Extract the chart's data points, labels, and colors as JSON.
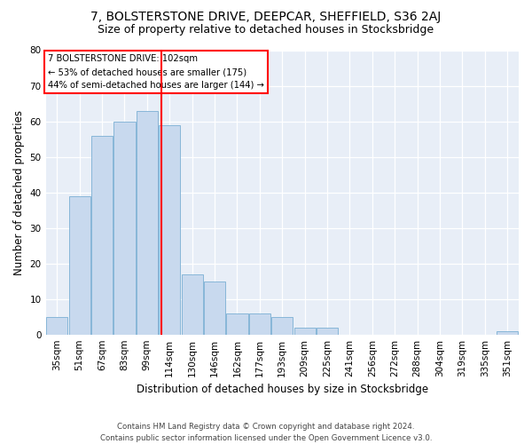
{
  "title": "7, BOLSTERSTONE DRIVE, DEEPCAR, SHEFFIELD, S36 2AJ",
  "subtitle": "Size of property relative to detached houses in Stocksbridge",
  "xlabel": "Distribution of detached houses by size in Stocksbridge",
  "ylabel": "Number of detached properties",
  "categories": [
    "35sqm",
    "51sqm",
    "67sqm",
    "83sqm",
    "99sqm",
    "114sqm",
    "130sqm",
    "146sqm",
    "162sqm",
    "177sqm",
    "193sqm",
    "209sqm",
    "225sqm",
    "241sqm",
    "256sqm",
    "272sqm",
    "288sqm",
    "304sqm",
    "319sqm",
    "335sqm",
    "351sqm"
  ],
  "values": [
    5,
    39,
    56,
    60,
    63,
    59,
    17,
    15,
    6,
    6,
    5,
    2,
    2,
    0,
    0,
    0,
    0,
    0,
    0,
    0,
    1
  ],
  "bar_color": "#c8d9ee",
  "bar_edge_color": "#7aafd4",
  "vline_x": 4.62,
  "vline_color": "red",
  "annotation_line1": "7 BOLSTERSTONE DRIVE: 102sqm",
  "annotation_line2": "← 53% of detached houses are smaller (175)",
  "annotation_line3": "44% of semi-detached houses are larger (144) →",
  "ylim": [
    0,
    80
  ],
  "yticks": [
    0,
    10,
    20,
    30,
    40,
    50,
    60,
    70,
    80
  ],
  "footnote1": "Contains HM Land Registry data © Crown copyright and database right 2024.",
  "footnote2": "Contains public sector information licensed under the Open Government Licence v3.0.",
  "title_fontsize": 10,
  "subtitle_fontsize": 9,
  "axis_label_fontsize": 8.5,
  "tick_fontsize": 7.5,
  "bg_color": "#e8eef7"
}
